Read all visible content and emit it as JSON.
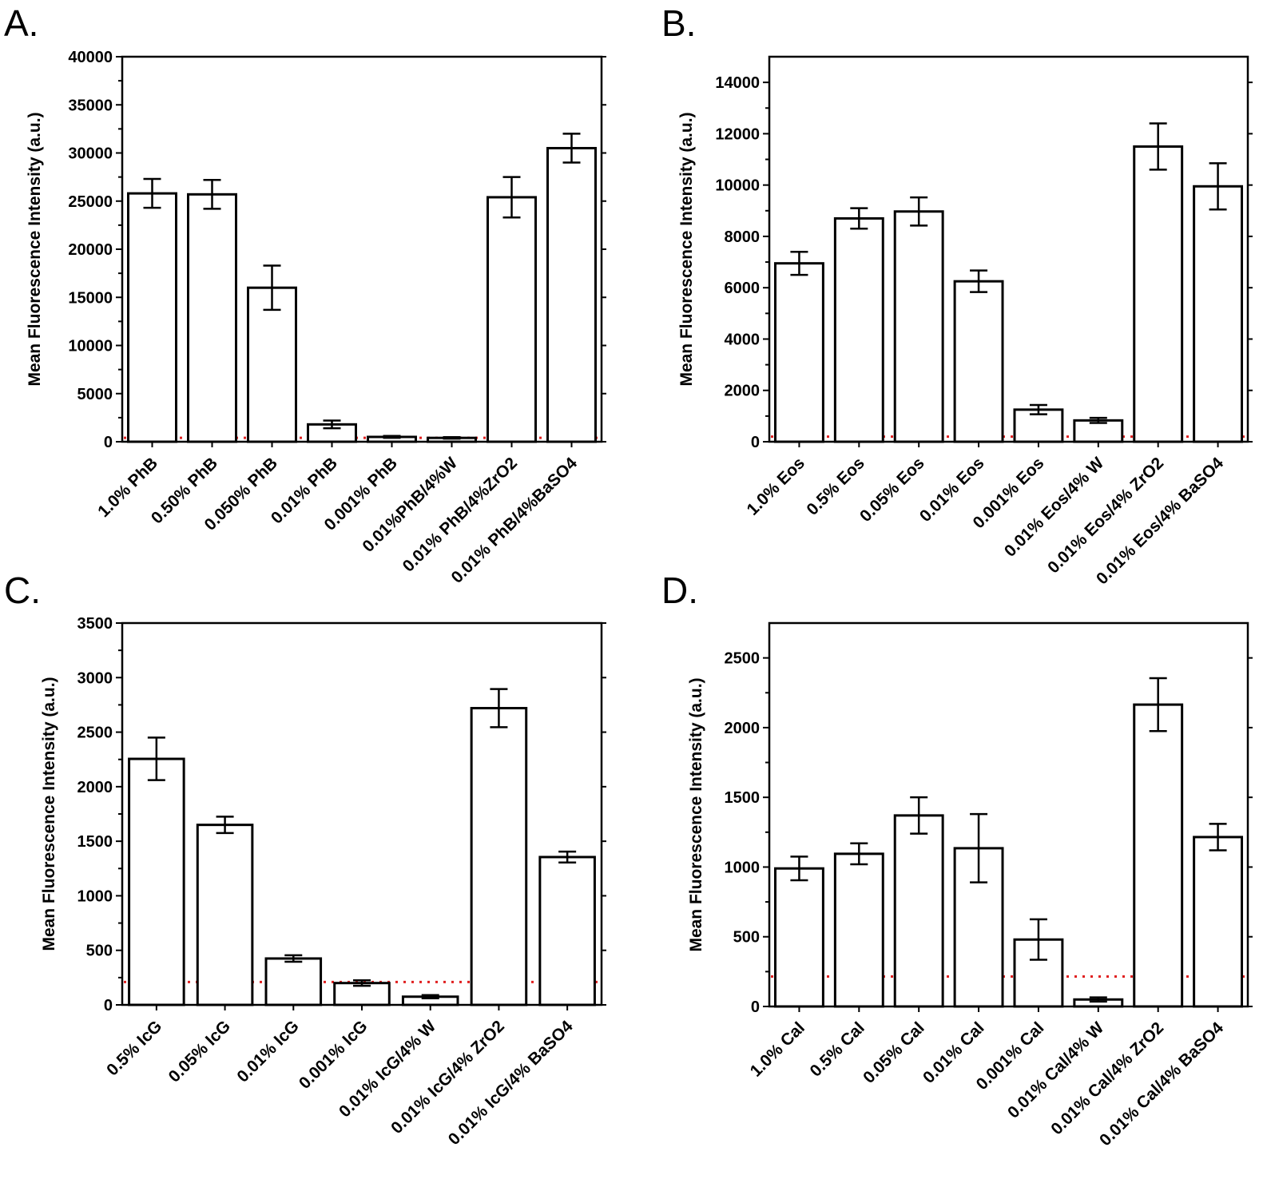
{
  "figure": {
    "panels": [
      "A.",
      "B.",
      "C.",
      "D."
    ]
  },
  "colors": {
    "bar_fill": "#ffffff",
    "bar_stroke": "#000000",
    "threshold": "#e02020"
  },
  "chart_data": [
    {
      "type": "bar",
      "panel": "A.",
      "title": "",
      "xlabel": "",
      "ylabel": "Mean Fluorescence Intensity (a.u.)",
      "ylim": [
        0,
        40000
      ],
      "yticks": [
        0,
        5000,
        10000,
        15000,
        20000,
        25000,
        30000,
        35000,
        40000
      ],
      "categories": [
        "1.0% PhB",
        "0.50% PhB",
        "0.050% PhB",
        "0.01% PhB",
        "0.001% PhB",
        "0.01%PhB/4%W",
        "0.01% PhB/4%ZrO2",
        "0.01% PhB/4%BaSO4"
      ],
      "values": [
        25800,
        25700,
        16000,
        1800,
        500,
        400,
        25400,
        30500
      ],
      "errors": [
        1500,
        1500,
        2300,
        400,
        100,
        80,
        2100,
        1500
      ],
      "threshold": 400
    },
    {
      "type": "bar",
      "panel": "B.",
      "title": "",
      "xlabel": "",
      "ylabel": "Mean Fluorescence Intensity (a.u.)",
      "ylim": [
        0,
        15000
      ],
      "yticks": [
        0,
        2000,
        4000,
        6000,
        8000,
        10000,
        12000,
        14000
      ],
      "categories": [
        "1.0% Eos",
        "0.5% Eos",
        "0.05% Eos",
        "0.01% Eos",
        "0.001% Eos",
        "0.01% Eos/4% W",
        "0.01% Eos/4% ZrO2",
        "0.01% Eos/4% BaSO4"
      ],
      "values": [
        6950,
        8700,
        8970,
        6250,
        1250,
        830,
        11500,
        9950
      ],
      "errors": [
        450,
        400,
        550,
        420,
        180,
        100,
        900,
        900
      ],
      "threshold": 200
    },
    {
      "type": "bar",
      "panel": "C.",
      "title": "",
      "xlabel": "",
      "ylabel": "Mean Fluorescence Intensity (a.u.)",
      "ylim": [
        0,
        3500
      ],
      "yticks": [
        0,
        500,
        1000,
        1500,
        2000,
        2500,
        3000,
        3500
      ],
      "categories": [
        "0.5% IcG",
        "0.05% IcG",
        "0.01% IcG",
        "0.001% IcG",
        "0.01% IcG/4% W",
        "0.01% IcG/4% ZrO2",
        "0.01% IcG/4% BaSO4"
      ],
      "values": [
        2255,
        1650,
        425,
        200,
        75,
        2720,
        1355
      ],
      "errors": [
        195,
        75,
        30,
        25,
        15,
        175,
        50
      ],
      "threshold": 210
    },
    {
      "type": "bar",
      "panel": "D.",
      "title": "",
      "xlabel": "",
      "ylabel": "Mean Fluorescence Intensity (a.u.)",
      "ylim": [
        0,
        2750
      ],
      "yticks": [
        0,
        500,
        1000,
        1500,
        2000,
        2500
      ],
      "categories": [
        "1.0% Cal",
        "0.5% Cal",
        "0.05% Cal",
        "0.01% Cal",
        "0.001% Cal",
        "0.01% Cal/4% W",
        "0.01% Cal/4% ZrO2",
        "0.01% Cal/4% BaSO4"
      ],
      "values": [
        990,
        1095,
        1370,
        1135,
        480,
        50,
        2165,
        1215
      ],
      "errors": [
        85,
        75,
        130,
        245,
        145,
        15,
        190,
        95
      ],
      "threshold": 215
    }
  ]
}
